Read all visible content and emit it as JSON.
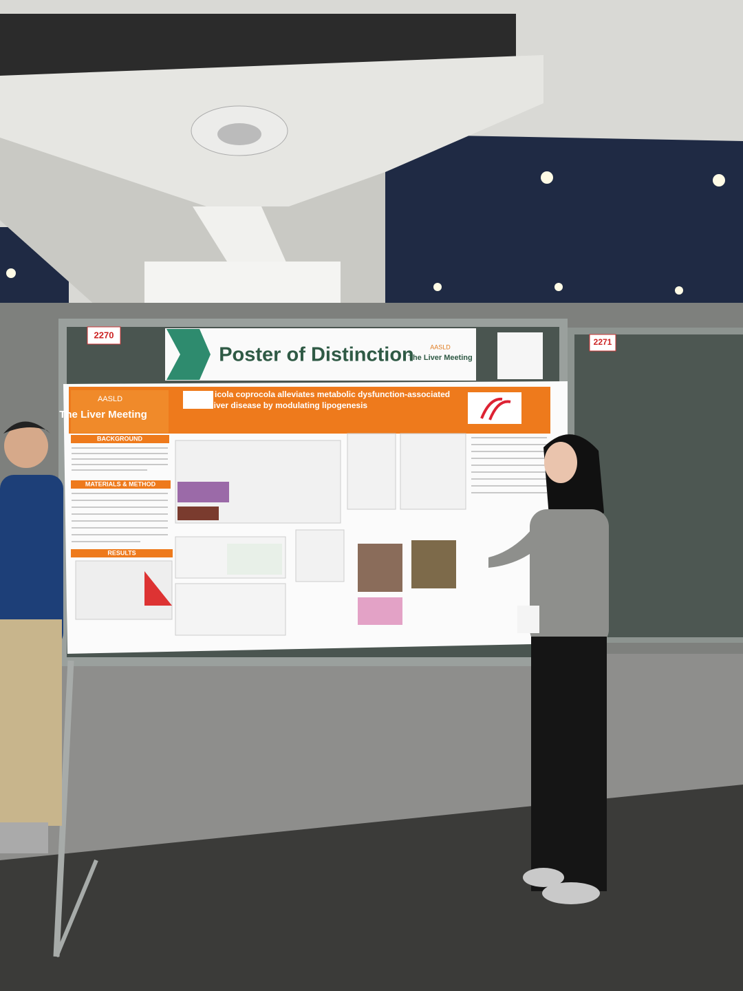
{
  "scene": {
    "booth_numbers": [
      "2270",
      "2271"
    ],
    "banner": {
      "title": "Poster of Distinction",
      "org": "AASLD",
      "event": "The Liver Meeting"
    },
    "poster": {
      "logo_org": "AASLD",
      "logo_event": "The Liver Meeting",
      "title_lines": [
        "icola coprocola alleviates metabolic dysfunction-associated",
        "tic liver disease by modulating lipogenesis"
      ],
      "sections": [
        "BACKGROUND",
        "MATERIALS & METHOD",
        "RESULTS"
      ]
    }
  }
}
